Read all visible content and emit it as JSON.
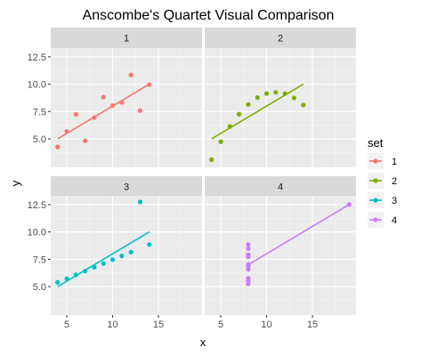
{
  "chart_data": {
    "type": "scatter",
    "title": "Anscombe's Quartet Visual Comparison",
    "xlabel": "x",
    "ylabel": "y",
    "xlim": [
      3.25,
      19.75
    ],
    "ylim": [
      2.4,
      13.3
    ],
    "x_ticks": [
      5,
      10,
      15
    ],
    "y_ticks": [
      5.0,
      7.5,
      10.0,
      12.5
    ],
    "x_tick_labels": [
      "5",
      "10",
      "15"
    ],
    "y_tick_labels": [
      "5.0",
      "7.5",
      "10.0",
      "12.5"
    ],
    "facet_layout": "2x2",
    "grid": true,
    "legend": {
      "title": "set",
      "placement": "right"
    },
    "overlay": "linear fit per panel",
    "series": [
      {
        "name": "1",
        "color": "#F8766D",
        "x": [
          10,
          8,
          13,
          9,
          11,
          14,
          6,
          4,
          12,
          7,
          5
        ],
        "y": [
          8.04,
          6.95,
          7.58,
          8.81,
          8.33,
          9.96,
          7.24,
          4.26,
          10.84,
          4.82,
          5.68
        ],
        "fit": {
          "x": [
            4,
            14
          ],
          "y": [
            5.0,
            10.0
          ]
        }
      },
      {
        "name": "2",
        "color": "#7CAE00",
        "x": [
          10,
          8,
          13,
          9,
          11,
          14,
          6,
          4,
          12,
          7,
          5
        ],
        "y": [
          9.14,
          8.14,
          8.74,
          8.77,
          9.26,
          8.1,
          6.13,
          3.1,
          9.13,
          7.26,
          4.74
        ],
        "fit": {
          "x": [
            4,
            14
          ],
          "y": [
            5.0,
            10.0
          ]
        }
      },
      {
        "name": "3",
        "color": "#00BFC4",
        "x": [
          10,
          8,
          13,
          9,
          11,
          14,
          6,
          4,
          12,
          7,
          5
        ],
        "y": [
          7.46,
          6.77,
          12.74,
          7.11,
          7.81,
          8.84,
          6.08,
          5.39,
          8.15,
          6.42,
          5.73
        ],
        "fit": {
          "x": [
            4,
            14
          ],
          "y": [
            5.0,
            10.0
          ]
        }
      },
      {
        "name": "4",
        "color": "#C77CFF",
        "x": [
          8,
          8,
          8,
          8,
          8,
          8,
          8,
          19,
          8,
          8,
          8
        ],
        "y": [
          6.58,
          5.76,
          7.71,
          8.84,
          8.47,
          7.04,
          5.25,
          12.5,
          5.56,
          7.91,
          6.89
        ],
        "fit": {
          "x": [
            8,
            19
          ],
          "y": [
            7.0,
            12.5
          ]
        }
      }
    ]
  }
}
